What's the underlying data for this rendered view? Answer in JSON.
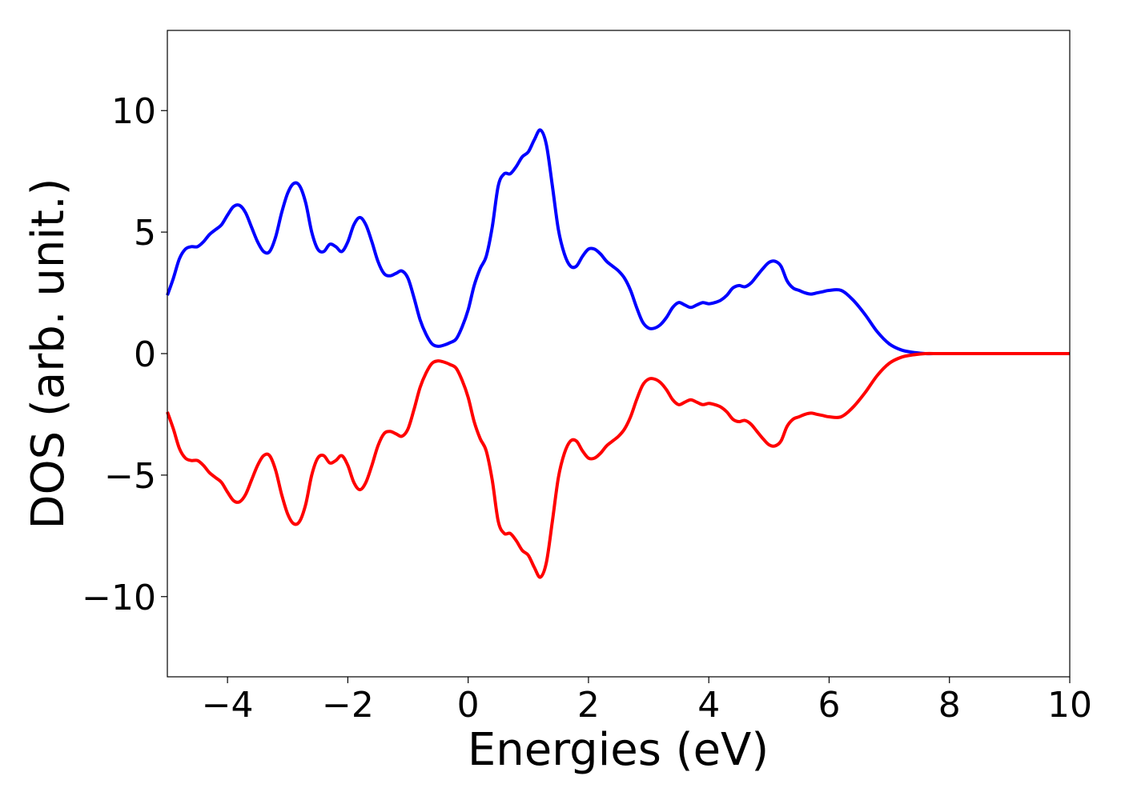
{
  "chart_data": {
    "type": "line",
    "title": "",
    "xlabel": "Energies (eV)",
    "ylabel": "DOS (arb. unit.)",
    "xlim": [
      -5,
      10
    ],
    "ylim": [
      -13.3,
      13.3
    ],
    "x_ticks": [
      -4,
      -2,
      0,
      2,
      4,
      6,
      8,
      10
    ],
    "y_ticks": [
      -10,
      -5,
      0,
      5,
      10
    ],
    "x_tick_labels": [
      "−4",
      "−2",
      "0",
      "2",
      "4",
      "6",
      "8",
      "10"
    ],
    "y_tick_labels": [
      "−10",
      "−5",
      "0",
      "5",
      "10"
    ],
    "grid": false,
    "legend": false,
    "series": [
      {
        "color": "#0000ff",
        "x": [
          -5.0,
          -4.9,
          -4.8,
          -4.7,
          -4.6,
          -4.5,
          -4.4,
          -4.3,
          -4.2,
          -4.1,
          -4.0,
          -3.9,
          -3.8,
          -3.7,
          -3.6,
          -3.5,
          -3.4,
          -3.3,
          -3.2,
          -3.1,
          -3.0,
          -2.9,
          -2.8,
          -2.7,
          -2.6,
          -2.5,
          -2.4,
          -2.3,
          -2.2,
          -2.1,
          -2.0,
          -1.9,
          -1.8,
          -1.7,
          -1.6,
          -1.5,
          -1.4,
          -1.3,
          -1.2,
          -1.1,
          -1.0,
          -0.9,
          -0.8,
          -0.7,
          -0.6,
          -0.5,
          -0.4,
          -0.3,
          -0.2,
          -0.1,
          0.0,
          0.1,
          0.2,
          0.3,
          0.4,
          0.5,
          0.6,
          0.7,
          0.8,
          0.9,
          1.0,
          1.1,
          1.2,
          1.3,
          1.4,
          1.5,
          1.6,
          1.7,
          1.8,
          1.9,
          2.0,
          2.1,
          2.2,
          2.3,
          2.4,
          2.5,
          2.6,
          2.7,
          2.8,
          2.9,
          3.0,
          3.1,
          3.2,
          3.3,
          3.4,
          3.5,
          3.6,
          3.7,
          3.8,
          3.9,
          4.0,
          4.1,
          4.2,
          4.3,
          4.4,
          4.5,
          4.6,
          4.7,
          4.8,
          4.9,
          5.0,
          5.1,
          5.2,
          5.3,
          5.4,
          5.5,
          5.6,
          5.7,
          5.8,
          5.9,
          6.0,
          6.2,
          6.4,
          6.6,
          6.8,
          7.0,
          7.2,
          7.4,
          7.6,
          7.8,
          8.0,
          8.1,
          8.2,
          8.3,
          8.4,
          8.5,
          8.6,
          8.7,
          8.8,
          9.0,
          9.5,
          10.0
        ],
        "y": [
          2.4,
          3.1,
          3.9,
          4.3,
          4.4,
          4.4,
          4.6,
          4.9,
          5.1,
          5.3,
          5.7,
          6.05,
          6.1,
          5.8,
          5.2,
          4.6,
          4.2,
          4.2,
          4.8,
          5.8,
          6.6,
          7.0,
          6.9,
          6.2,
          5.0,
          4.3,
          4.2,
          4.5,
          4.4,
          4.2,
          4.6,
          5.3,
          5.6,
          5.3,
          4.6,
          3.8,
          3.3,
          3.2,
          3.3,
          3.4,
          3.1,
          2.3,
          1.4,
          0.8,
          0.4,
          0.3,
          0.35,
          0.45,
          0.6,
          1.1,
          1.8,
          2.8,
          3.5,
          4.0,
          5.2,
          6.9,
          7.4,
          7.4,
          7.7,
          8.1,
          8.3,
          8.8,
          9.2,
          8.6,
          6.9,
          5.1,
          4.1,
          3.6,
          3.6,
          4.0,
          4.3,
          4.3,
          4.1,
          3.8,
          3.6,
          3.4,
          3.1,
          2.6,
          1.9,
          1.3,
          1.05,
          1.05,
          1.2,
          1.5,
          1.9,
          2.1,
          2.0,
          1.9,
          2.0,
          2.1,
          2.05,
          2.1,
          2.2,
          2.4,
          2.7,
          2.8,
          2.75,
          2.9,
          3.2,
          3.5,
          3.75,
          3.8,
          3.6,
          3.0,
          2.7,
          2.6,
          2.5,
          2.45,
          2.5,
          2.55,
          2.6,
          2.6,
          2.2,
          1.6,
          0.9,
          0.4,
          0.15,
          0.05,
          0.0,
          0.0,
          0.0,
          0.0,
          0.0,
          0.0,
          0.0,
          0.0,
          0.0,
          0.0,
          0.0,
          0.0,
          0.0,
          0.0
        ]
      },
      {
        "color": "#ff0000",
        "x": [
          -5.0,
          -4.9,
          -4.8,
          -4.7,
          -4.6,
          -4.5,
          -4.4,
          -4.3,
          -4.2,
          -4.1,
          -4.0,
          -3.9,
          -3.8,
          -3.7,
          -3.6,
          -3.5,
          -3.4,
          -3.3,
          -3.2,
          -3.1,
          -3.0,
          -2.9,
          -2.8,
          -2.7,
          -2.6,
          -2.5,
          -2.4,
          -2.3,
          -2.2,
          -2.1,
          -2.0,
          -1.9,
          -1.8,
          -1.7,
          -1.6,
          -1.5,
          -1.4,
          -1.3,
          -1.2,
          -1.1,
          -1.0,
          -0.9,
          -0.8,
          -0.7,
          -0.6,
          -0.5,
          -0.4,
          -0.3,
          -0.2,
          -0.1,
          0.0,
          0.1,
          0.2,
          0.3,
          0.4,
          0.5,
          0.6,
          0.7,
          0.8,
          0.9,
          1.0,
          1.1,
          1.2,
          1.3,
          1.4,
          1.5,
          1.6,
          1.7,
          1.8,
          1.9,
          2.0,
          2.1,
          2.2,
          2.3,
          2.4,
          2.5,
          2.6,
          2.7,
          2.8,
          2.9,
          3.0,
          3.1,
          3.2,
          3.3,
          3.4,
          3.5,
          3.6,
          3.7,
          3.8,
          3.9,
          4.0,
          4.1,
          4.2,
          4.3,
          4.4,
          4.5,
          4.6,
          4.7,
          4.8,
          4.9,
          5.0,
          5.1,
          5.2,
          5.3,
          5.4,
          5.5,
          5.6,
          5.7,
          5.8,
          5.9,
          6.0,
          6.2,
          6.4,
          6.6,
          6.8,
          7.0,
          7.2,
          7.4,
          7.6,
          7.8,
          8.0,
          8.1,
          8.2,
          8.3,
          8.4,
          8.5,
          8.6,
          8.7,
          8.8,
          9.0,
          9.5,
          10.0
        ],
        "y": [
          -2.4,
          -3.1,
          -3.9,
          -4.3,
          -4.4,
          -4.4,
          -4.6,
          -4.9,
          -5.1,
          -5.3,
          -5.7,
          -6.05,
          -6.1,
          -5.8,
          -5.2,
          -4.6,
          -4.2,
          -4.2,
          -4.8,
          -5.8,
          -6.6,
          -7.0,
          -6.9,
          -6.2,
          -5.0,
          -4.3,
          -4.2,
          -4.5,
          -4.4,
          -4.2,
          -4.6,
          -5.3,
          -5.6,
          -5.3,
          -4.6,
          -3.8,
          -3.3,
          -3.2,
          -3.3,
          -3.4,
          -3.1,
          -2.3,
          -1.4,
          -0.8,
          -0.4,
          -0.3,
          -0.35,
          -0.45,
          -0.6,
          -1.1,
          -1.8,
          -2.8,
          -3.5,
          -4.0,
          -5.2,
          -6.9,
          -7.4,
          -7.4,
          -7.7,
          -8.1,
          -8.3,
          -8.8,
          -9.2,
          -8.6,
          -6.9,
          -5.1,
          -4.1,
          -3.6,
          -3.6,
          -4.0,
          -4.3,
          -4.3,
          -4.1,
          -3.8,
          -3.6,
          -3.4,
          -3.1,
          -2.6,
          -1.9,
          -1.3,
          -1.05,
          -1.05,
          -1.2,
          -1.5,
          -1.9,
          -2.1,
          -2.0,
          -1.9,
          -2.0,
          -2.1,
          -2.05,
          -2.1,
          -2.2,
          -2.4,
          -2.7,
          -2.8,
          -2.75,
          -2.9,
          -3.2,
          -3.5,
          -3.75,
          -3.8,
          -3.6,
          -3.0,
          -2.7,
          -2.6,
          -2.5,
          -2.45,
          -2.5,
          -2.55,
          -2.6,
          -2.6,
          -2.2,
          -1.6,
          -0.9,
          -0.4,
          -0.15,
          -0.05,
          0.0,
          0.0,
          0.0,
          0.0,
          0.0,
          0.0,
          0.0,
          0.0,
          0.0,
          0.0,
          0.0,
          0.0,
          0.0,
          0.0
        ]
      }
    ]
  }
}
